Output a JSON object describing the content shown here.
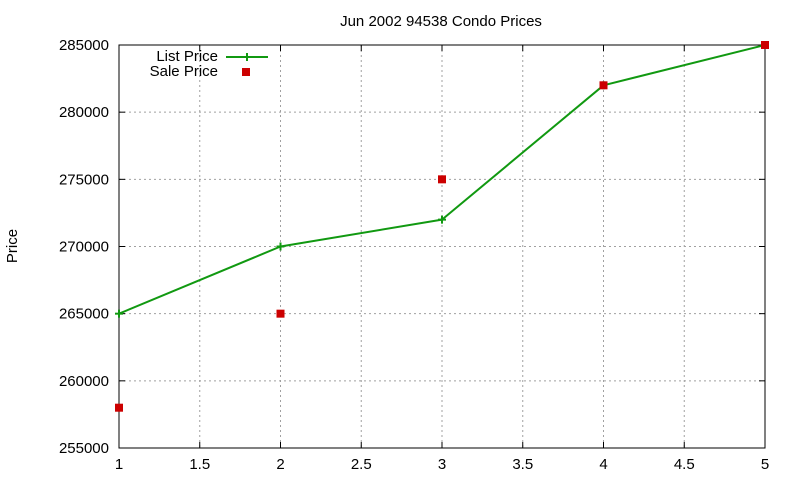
{
  "chart_data": {
    "type": "line",
    "title": "Jun 2002 94538 Condo Prices",
    "xlabel": "",
    "ylabel": "Price",
    "xlim": [
      1,
      5
    ],
    "ylim": [
      255000,
      285000
    ],
    "x_ticks": [
      1,
      1.5,
      2,
      2.5,
      3,
      3.5,
      4,
      4.5,
      5
    ],
    "y_ticks": [
      255000,
      260000,
      265000,
      270000,
      275000,
      280000,
      285000
    ],
    "grid": true,
    "legend_position": "top-left",
    "series": [
      {
        "name": "List Price",
        "style": "linespoints",
        "marker": "plus",
        "color": "#119911",
        "x": [
          1,
          2,
          3,
          4,
          5
        ],
        "y": [
          265000,
          270000,
          272000,
          282000,
          285000
        ]
      },
      {
        "name": "Sale Price",
        "style": "points",
        "marker": "square",
        "color": "#cc0000",
        "x": [
          1,
          2,
          3,
          4,
          5
        ],
        "y": [
          258000,
          265000,
          275000,
          282000,
          285000
        ]
      }
    ]
  }
}
